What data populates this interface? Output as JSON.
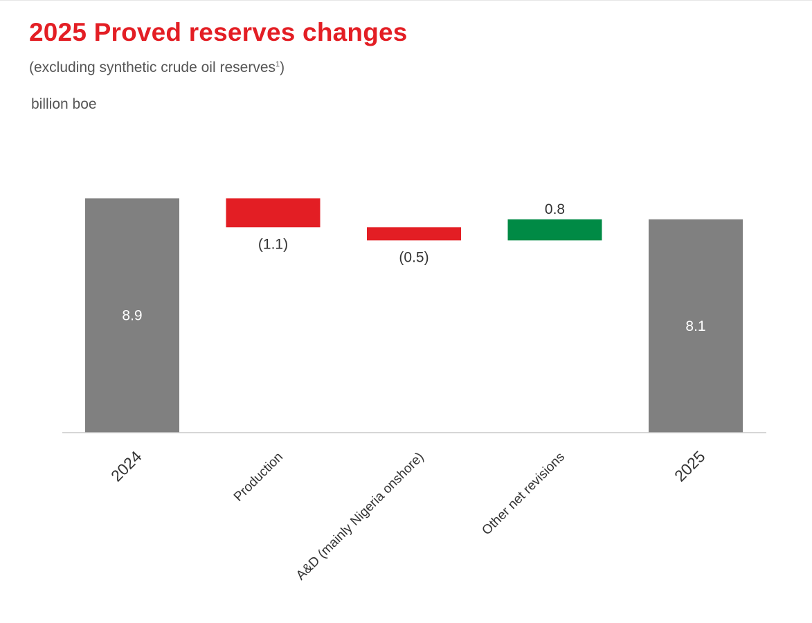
{
  "header": {
    "title": "2025 Proved reserves changes",
    "subtitle": "(excluding synthetic crude oil reserves",
    "subtitle_footnote_mark": "1",
    "subtitle_close": ")",
    "unit": "billion boe"
  },
  "colors": {
    "title": "#e31e24",
    "total": "#808080",
    "decrease": "#e31e24",
    "increase": "#008a45",
    "axis": "#c8c8c8",
    "label_dark": "#333333",
    "label_light": "#ffffff"
  },
  "chart_data": {
    "type": "bar",
    "subtype": "waterfall",
    "categories": [
      "2024",
      "Production",
      "A&D (mainly Nigeria onshore)",
      "Other net revisions",
      "2025"
    ],
    "values": [
      8.9,
      -1.1,
      -0.5,
      0.8,
      8.1
    ],
    "kinds": [
      "total",
      "change",
      "change",
      "change",
      "total"
    ],
    "data_labels": [
      "8.9",
      "(1.1)",
      "(0.5)",
      "0.8",
      "8.1"
    ],
    "title": "2025 Proved reserves changes",
    "ylabel": "billion boe",
    "ylim": [
      0,
      10.2
    ],
    "grid": false,
    "legend": "none"
  }
}
